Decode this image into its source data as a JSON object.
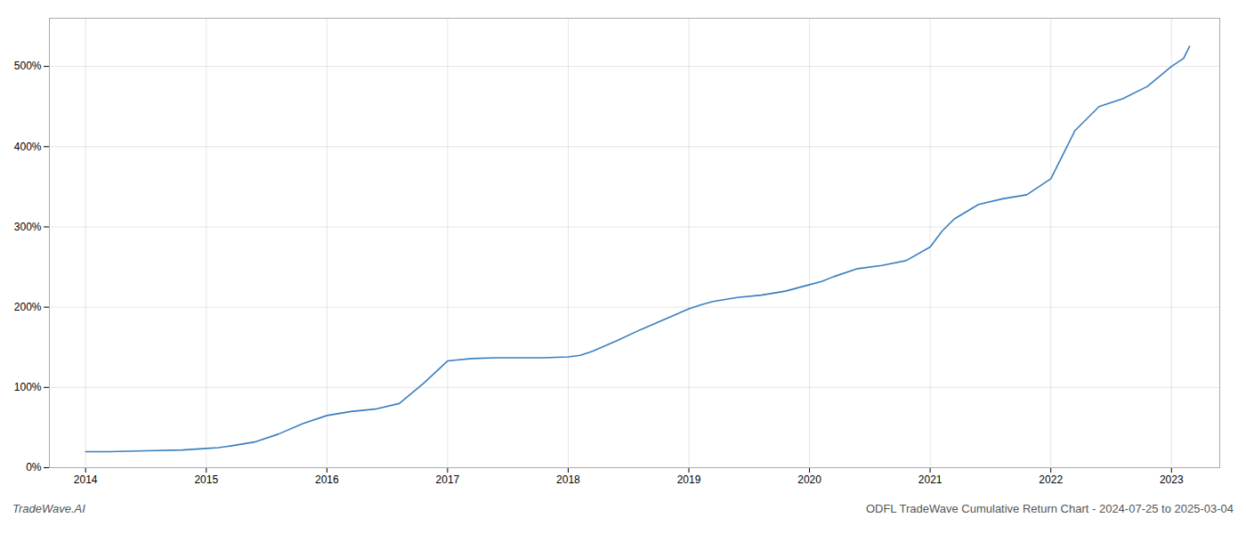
{
  "chart_data": {
    "type": "line",
    "title": "ODFL TradeWave Cumulative Return Chart - 2024-07-25 to 2025-03-04",
    "annotations": [
      "TradeWave.AI"
    ],
    "color": "#3a7ebf",
    "grid": true,
    "x": [
      2014.0,
      2014.2,
      2014.5,
      2014.8,
      2015.0,
      2015.1,
      2015.2,
      2015.4,
      2015.6,
      2015.8,
      2016.0,
      2016.2,
      2016.4,
      2016.6,
      2016.8,
      2017.0,
      2017.2,
      2017.4,
      2017.6,
      2017.8,
      2018.0,
      2018.1,
      2018.2,
      2018.4,
      2018.6,
      2018.8,
      2019.0,
      2019.1,
      2019.2,
      2019.4,
      2019.6,
      2019.8,
      2020.0,
      2020.1,
      2020.2,
      2020.4,
      2020.6,
      2020.8,
      2021.0,
      2021.1,
      2021.2,
      2021.4,
      2021.6,
      2021.8,
      2022.0,
      2022.1,
      2022.2,
      2022.4,
      2022.6,
      2022.8,
      2023.0,
      2023.1,
      2023.15
    ],
    "values": [
      20,
      20,
      21,
      22,
      24,
      25,
      27,
      32,
      42,
      55,
      65,
      70,
      73,
      80,
      105,
      133,
      136,
      137,
      137,
      137,
      138,
      140,
      145,
      158,
      172,
      185,
      198,
      203,
      207,
      212,
      215,
      220,
      228,
      232,
      238,
      248,
      252,
      258,
      275,
      295,
      310,
      328,
      335,
      340,
      360,
      390,
      420,
      450,
      460,
      475,
      500,
      510,
      525
    ],
    "xlim": [
      2013.7,
      2023.4
    ],
    "xticks": [
      2014,
      2015,
      2016,
      2017,
      2018,
      2019,
      2020,
      2021,
      2022,
      2023
    ],
    "ylim": [
      0,
      560
    ],
    "yticks": [
      {
        "value": 0,
        "label": "0%"
      },
      {
        "value": 100,
        "label": "100%"
      },
      {
        "value": 200,
        "label": "200%"
      },
      {
        "value": 300,
        "label": "300%"
      },
      {
        "value": 400,
        "label": "400%"
      },
      {
        "value": 500,
        "label": "500%"
      }
    ]
  }
}
